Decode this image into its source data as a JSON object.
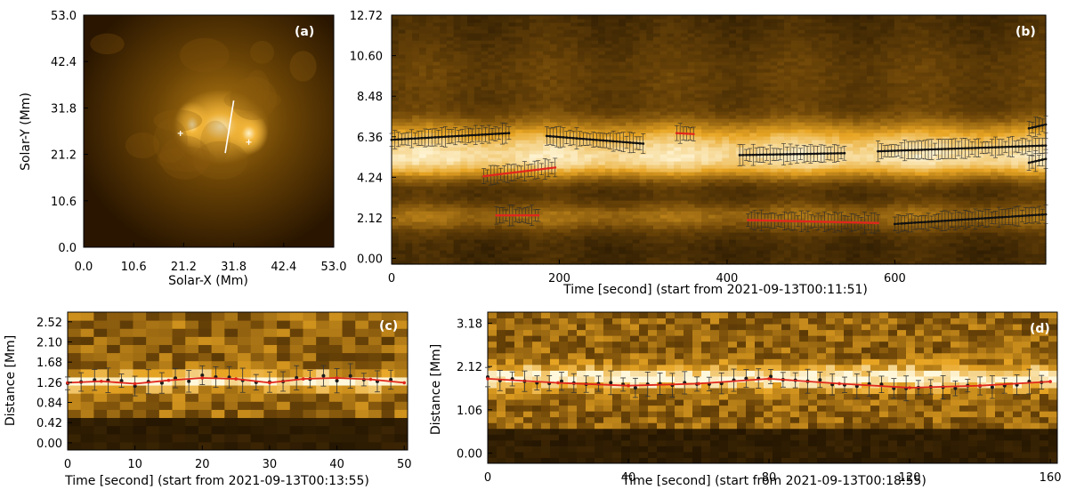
{
  "chart_data": [
    {
      "panel": "a",
      "type": "heatmap",
      "label": "(a)",
      "xlabel": "Solar-X (Mm)",
      "ylabel": "Solar-Y (Mm)",
      "xlim": [
        0,
        53
      ],
      "ylim": [
        0,
        53
      ],
      "xticks": [
        "0.0",
        "10.6",
        "21.2",
        "31.8",
        "42.4",
        "53.0"
      ],
      "yticks": [
        "0.0",
        "10.6",
        "21.2",
        "31.8",
        "42.4",
        "53.0"
      ],
      "slit": {
        "x": [
          30.0,
          31.8
        ],
        "y": [
          21.5,
          33.5
        ]
      },
      "markers": [
        {
          "x": 20.5,
          "y": 26.0
        },
        {
          "x": 35.0,
          "y": 24.0
        }
      ]
    },
    {
      "panel": "b",
      "type": "heatmap",
      "label": "(b)",
      "xlabel": "Time [second] (start from 2021-09-13T00:11:51)",
      "ylabel": "",
      "xlim": [
        0,
        780
      ],
      "ylim": [
        -0.3,
        12.72
      ],
      "xticks": [
        "0",
        "200",
        "400",
        "600"
      ],
      "yticks": [
        "0.00",
        "2.12",
        "4.24",
        "6.36",
        "8.48",
        "10.60",
        "12.72"
      ],
      "series": [
        {
          "x": [
            0,
            140
          ],
          "y_start": 6.2,
          "y_end": 6.55,
          "color": "black"
        },
        {
          "x": [
            110,
            195
          ],
          "y_start": 4.3,
          "y_end": 4.75,
          "color": "red"
        },
        {
          "x": [
            125,
            175
          ],
          "y_start": 2.25,
          "y_end": 2.25,
          "color": "red"
        },
        {
          "x": [
            185,
            300
          ],
          "y_start": 6.4,
          "y_end": 6.0,
          "color": "black"
        },
        {
          "x": [
            340,
            360
          ],
          "y_start": 6.55,
          "y_end": 6.5,
          "color": "red"
        },
        {
          "x": [
            415,
            540
          ],
          "y_start": 5.4,
          "y_end": 5.5,
          "color": "black"
        },
        {
          "x": [
            425,
            580
          ],
          "y_start": 2.0,
          "y_end": 1.85,
          "color": "red"
        },
        {
          "x": [
            580,
            780
          ],
          "y_start": 5.6,
          "y_end": 5.9,
          "color": "black"
        },
        {
          "x": [
            600,
            780
          ],
          "y_start": 1.8,
          "y_end": 2.3,
          "color": "black"
        },
        {
          "x": [
            760,
            780
          ],
          "y_start": 6.8,
          "y_end": 7.0,
          "color": "black"
        },
        {
          "x": [
            760,
            780
          ],
          "y_start": 5.0,
          "y_end": 5.2,
          "color": "black"
        }
      ]
    },
    {
      "panel": "c",
      "type": "heatmap",
      "label": "(c)",
      "xlabel": "Time [second] (start from 2021-09-13T00:13:55)",
      "ylabel": "Distance [Mm]",
      "xlim": [
        0,
        50.5
      ],
      "ylim": [
        -0.15,
        2.72
      ],
      "xticks": [
        "0",
        "10",
        "20",
        "30",
        "40",
        "50"
      ],
      "yticks": [
        "0.00",
        "0.42",
        "0.84",
        "1.26",
        "1.68",
        "2.10",
        "2.52"
      ],
      "series": [
        {
          "name": "fit",
          "color": "red",
          "x": [
            0,
            5,
            10,
            15,
            20,
            25,
            30,
            35,
            40,
            45,
            50
          ],
          "y": [
            1.25,
            1.28,
            1.23,
            1.3,
            1.35,
            1.33,
            1.25,
            1.33,
            1.35,
            1.32,
            1.25
          ]
        }
      ]
    },
    {
      "panel": "d",
      "type": "heatmap",
      "label": "(d)",
      "xlabel": "Time [second] (start from 2021-09-13T00:18:55)",
      "ylabel": "Distance [Mm]",
      "xlim": [
        0,
        162
      ],
      "ylim": [
        -0.25,
        3.45
      ],
      "xticks": [
        "0",
        "40",
        "80",
        "120",
        "160"
      ],
      "yticks": [
        "0.00",
        "1.06",
        "2.12",
        "3.18"
      ],
      "series": [
        {
          "name": "fit",
          "color": "red",
          "x": [
            0,
            20,
            40,
            60,
            80,
            100,
            120,
            140,
            160
          ],
          "y": [
            1.82,
            1.72,
            1.65,
            1.7,
            1.82,
            1.7,
            1.6,
            1.65,
            1.75
          ]
        }
      ]
    }
  ],
  "colors": {
    "dark": "#140b00",
    "mid": "#8a5a0e",
    "bright": "#f0b22a",
    "hot": "#fff6d8",
    "fit": "#e0271c",
    "point": "#1a1a1a"
  }
}
